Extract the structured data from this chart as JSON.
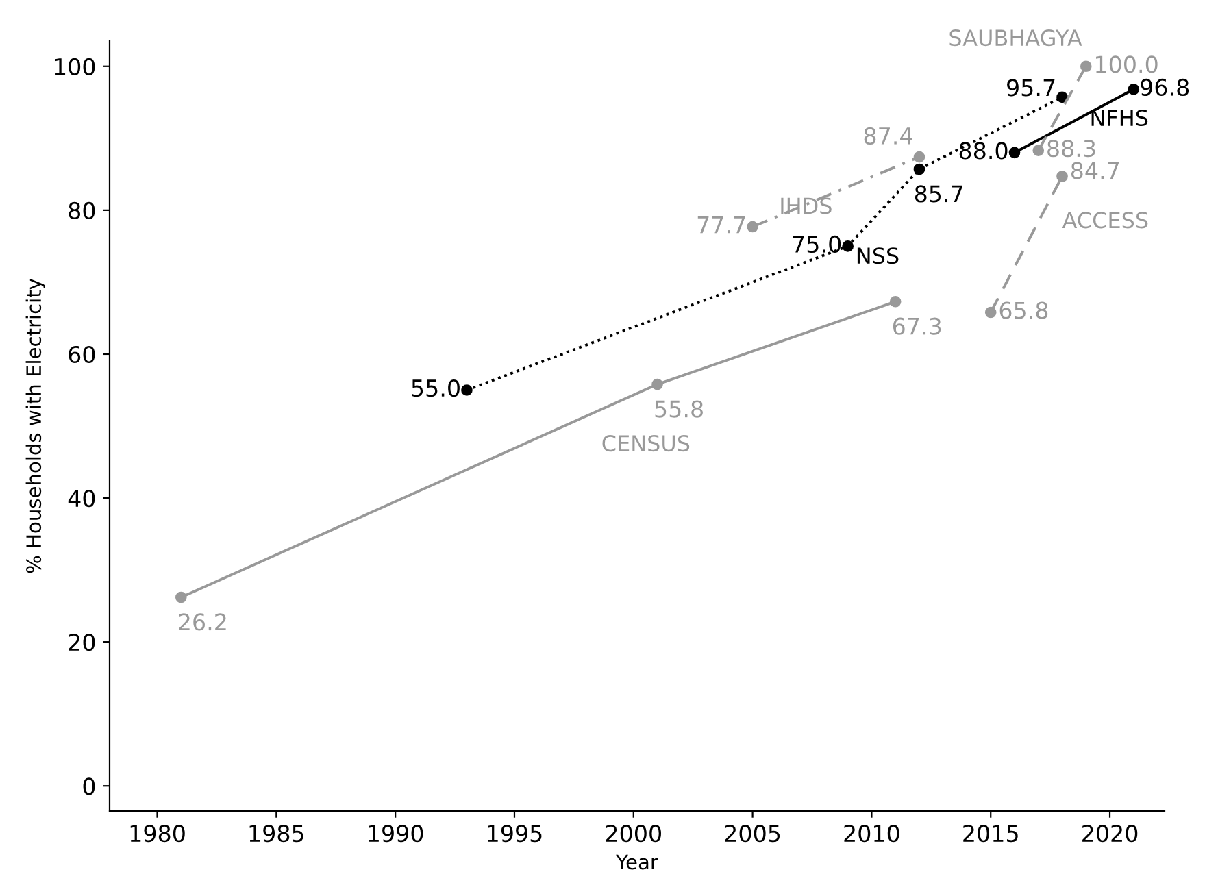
{
  "chart_data": {
    "type": "line",
    "xlabel": "Year",
    "ylabel": "% Households with Electricity",
    "xlim": [
      1978,
      2022.3
    ],
    "xticks": [
      1980,
      1985,
      1990,
      1995,
      2000,
      2005,
      2010,
      2015,
      2020
    ],
    "ylim": [
      -3.5,
      103.5
    ],
    "yticks": [
      0,
      20,
      40,
      60,
      80,
      100
    ],
    "grid": false,
    "legend": false,
    "marker": "circle",
    "series": [
      {
        "name": "CENSUS",
        "color": "#999999",
        "line_style": "solid",
        "x": [
          1981,
          2001,
          2011
        ],
        "values": [
          26.2,
          55.8,
          67.3
        ],
        "value_labels": [
          "26.2",
          "55.8",
          "67.3"
        ]
      },
      {
        "name": "NSS",
        "color": "#000000",
        "line_style": "dotted",
        "x": [
          1993,
          2009,
          2012,
          2018
        ],
        "values": [
          55.0,
          75.0,
          85.7,
          95.7
        ],
        "value_labels": [
          "55.0",
          "75.0",
          "85.7",
          "95.7"
        ]
      },
      {
        "name": "IHDS",
        "color": "#999999",
        "line_style": "dashdot",
        "x": [
          2005,
          2012
        ],
        "values": [
          77.7,
          87.4
        ],
        "value_labels": [
          "77.7",
          "87.4"
        ]
      },
      {
        "name": "NFHS",
        "color": "#000000",
        "line_style": "solid",
        "x": [
          2016,
          2021
        ],
        "values": [
          88.0,
          96.8
        ],
        "value_labels": [
          "88.0",
          "96.8"
        ]
      },
      {
        "name": "ACCESS",
        "color": "#999999",
        "line_style": "dashed",
        "x": [
          2015,
          2018
        ],
        "values": [
          65.8,
          84.7
        ],
        "value_labels": [
          "65.8",
          "84.7"
        ]
      },
      {
        "name": "SAUBHAGYA",
        "color": "#999999",
        "line_style": "dashed",
        "x": [
          2017,
          2019
        ],
        "values": [
          88.3,
          100.0
        ],
        "value_labels": [
          "88.3",
          "100.0"
        ]
      }
    ]
  }
}
